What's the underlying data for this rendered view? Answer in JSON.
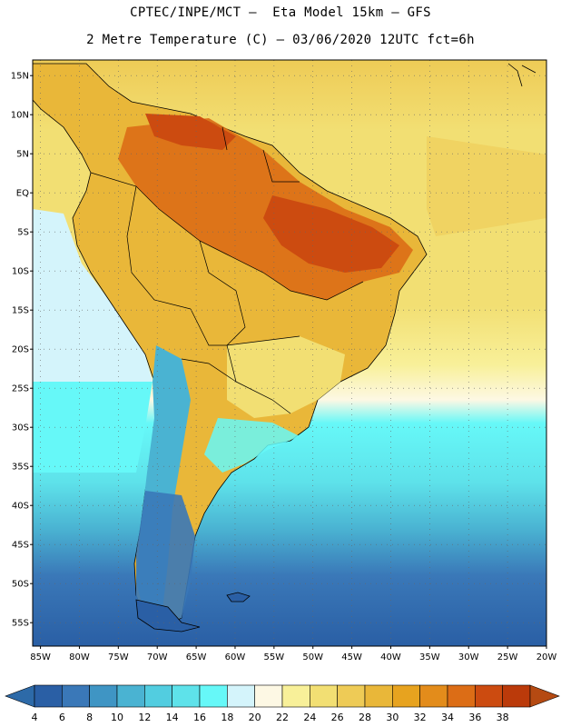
{
  "title": {
    "line1": "CPTEC/INPE/MCT –  Eta Model 15km – GFS",
    "line2": "2 Metre Temperature (C) – 03/06/2020 12UTC fct=6h"
  },
  "map": {
    "lon_range": [
      -86,
      -20
    ],
    "lat_range": [
      -58,
      17
    ],
    "lat_labels": [
      {
        "lat": 15,
        "label": "15N"
      },
      {
        "lat": 10,
        "label": "10N"
      },
      {
        "lat": 5,
        "label": "5N"
      },
      {
        "lat": 0,
        "label": "EQ"
      },
      {
        "lat": -5,
        "label": "5S"
      },
      {
        "lat": -10,
        "label": "10S"
      },
      {
        "lat": -15,
        "label": "15S"
      },
      {
        "lat": -20,
        "label": "20S"
      },
      {
        "lat": -25,
        "label": "25S"
      },
      {
        "lat": -30,
        "label": "30S"
      },
      {
        "lat": -35,
        "label": "35S"
      },
      {
        "lat": -40,
        "label": "40S"
      },
      {
        "lat": -45,
        "label": "45S"
      },
      {
        "lat": -50,
        "label": "50S"
      },
      {
        "lat": -55,
        "label": "55S"
      }
    ],
    "lon_labels": [
      {
        "lon": -85,
        "label": "85W"
      },
      {
        "lon": -80,
        "label": "80W"
      },
      {
        "lon": -75,
        "label": "75W"
      },
      {
        "lon": -70,
        "label": "70W"
      },
      {
        "lon": -65,
        "label": "65W"
      },
      {
        "lon": -60,
        "label": "60W"
      },
      {
        "lon": -55,
        "label": "55W"
      },
      {
        "lon": -50,
        "label": "50W"
      },
      {
        "lon": -45,
        "label": "45W"
      },
      {
        "lon": -40,
        "label": "40W"
      },
      {
        "lon": -35,
        "label": "35W"
      },
      {
        "lon": -30,
        "label": "30W"
      },
      {
        "lon": -25,
        "label": "25W"
      },
      {
        "lon": -20,
        "label": "20W"
      }
    ]
  },
  "colorbar": {
    "labels": [
      "4",
      "6",
      "8",
      "10",
      "12",
      "14",
      "16",
      "18",
      "20",
      "22",
      "24",
      "26",
      "28",
      "30",
      "32",
      "34",
      "36",
      "38"
    ],
    "colors": [
      "#2a5fa5",
      "#3a78b8",
      "#3f95c4",
      "#4ab3d2",
      "#52cde0",
      "#5ee2ea",
      "#66f8f8",
      "#d4f4fb",
      "#fdf8e4",
      "#f8f099",
      "#f2df73",
      "#eecb56",
      "#e9b739",
      "#e7a31f",
      "#e38c1b",
      "#dc6d16",
      "#cc4b10",
      "#bb3a0a"
    ],
    "under_color": "#2d6aa8",
    "over_color": "#b54a12"
  }
}
